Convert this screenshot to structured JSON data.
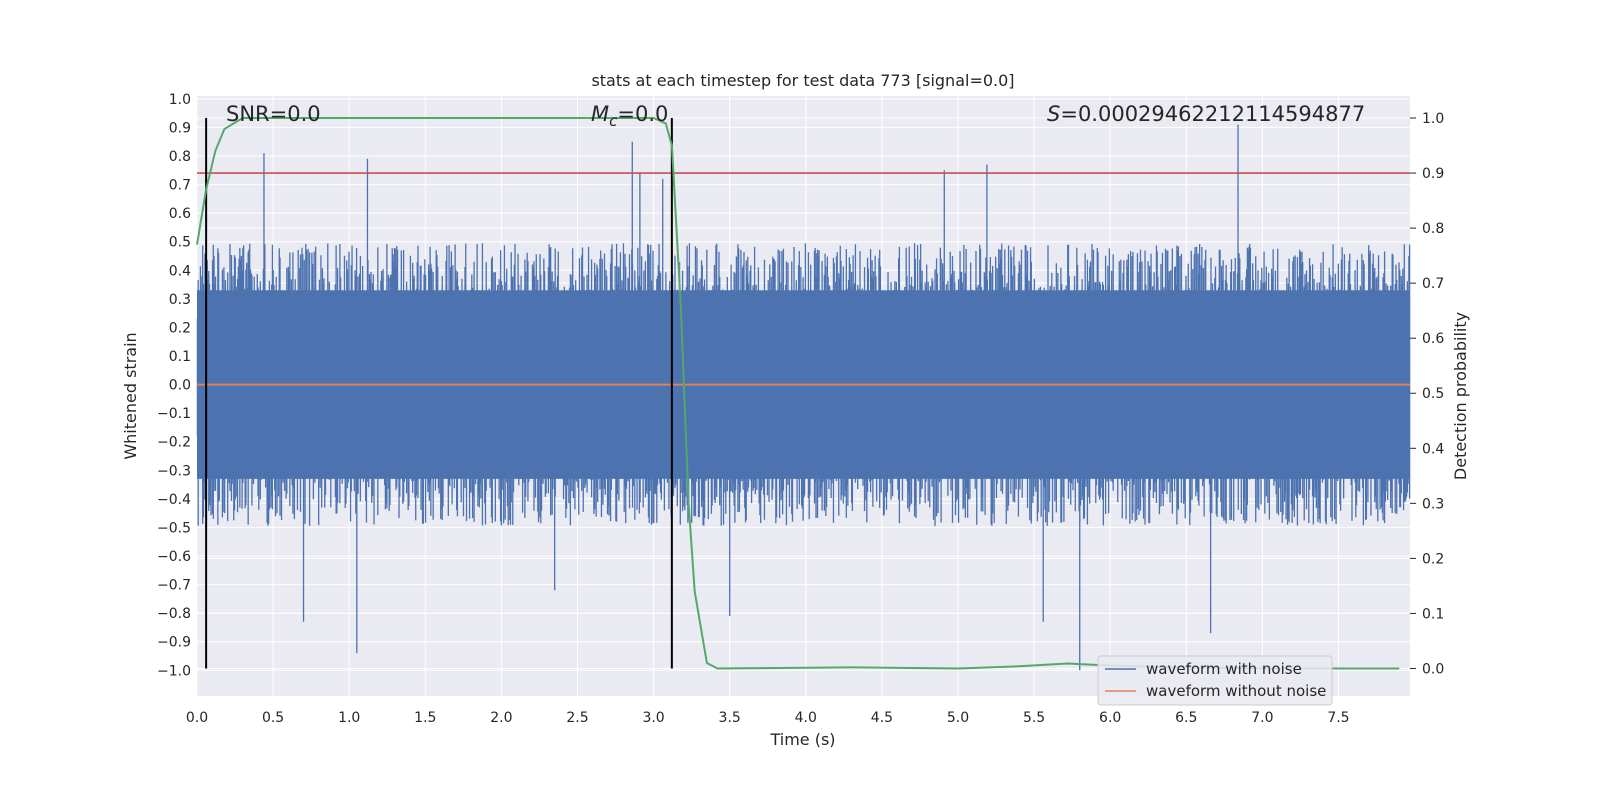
{
  "chart_data": {
    "type": "line",
    "title": "stats at each timestep for test data 773 [signal=0.0]",
    "xlabel": "Time (s)",
    "ylabel": "Whitened strain",
    "y2label": "Detection probability",
    "xlim": [
      0.0,
      7.97
    ],
    "ylim": [
      -1.09,
      1.01
    ],
    "y2lim": [
      -0.05,
      1.04
    ],
    "x_ticks": [
      "0.0",
      "0.5",
      "1.0",
      "1.5",
      "2.0",
      "2.5",
      "3.0",
      "3.5",
      "4.0",
      "4.5",
      "5.0",
      "5.5",
      "6.0",
      "6.5",
      "7.0",
      "7.5"
    ],
    "y_ticks": [
      "1.0",
      "0.9",
      "0.8",
      "0.7",
      "0.6",
      "0.5",
      "0.4",
      "0.3",
      "0.2",
      "0.1",
      "0.0",
      "-0.1",
      "-0.2",
      "-0.3",
      "-0.4",
      "-0.5",
      "-0.6",
      "-0.7",
      "-0.8",
      "-0.9",
      "-1.0"
    ],
    "y2_ticks": [
      "0.0",
      "0.1",
      "0.2",
      "0.3",
      "0.4",
      "0.5",
      "0.6",
      "0.7",
      "0.8",
      "0.9",
      "1.0"
    ],
    "grid": true,
    "legend_position": "bottom-right",
    "series": [
      {
        "name": "waveform with noise",
        "color": "#4c72b0",
        "axis": "left",
        "kind": "noise",
        "envelope_approx": 0.45,
        "spikes": [
          {
            "x": 0.44,
            "y": 0.81
          },
          {
            "x": 1.12,
            "y": 0.79
          },
          {
            "x": 2.86,
            "y": 0.85
          },
          {
            "x": 2.91,
            "y": 0.74
          },
          {
            "x": 3.06,
            "y": 0.72
          },
          {
            "x": 6.84,
            "y": 0.91
          },
          {
            "x": 5.19,
            "y": 0.77
          },
          {
            "x": 4.91,
            "y": 0.75
          },
          {
            "x": 0.7,
            "y": -0.83
          },
          {
            "x": 1.05,
            "y": -0.94
          },
          {
            "x": 2.35,
            "y": -0.72
          },
          {
            "x": 3.5,
            "y": -0.81
          },
          {
            "x": 5.8,
            "y": -1.0
          },
          {
            "x": 6.66,
            "y": -0.87
          },
          {
            "x": 5.56,
            "y": -0.83
          }
        ]
      },
      {
        "name": "waveform without noise",
        "color": "#dd8452",
        "axis": "left",
        "x": [
          0.0,
          7.97
        ],
        "y": [
          0.0,
          0.0
        ]
      },
      {
        "name": "",
        "color": "#55a868",
        "axis": "right",
        "x": [
          0.0,
          0.06,
          0.12,
          0.18,
          0.24,
          0.3,
          0.4,
          1.0,
          2.0,
          2.8,
          3.0,
          3.08,
          3.12,
          3.18,
          3.23,
          3.27,
          3.35,
          3.42,
          4.3,
          5.0,
          5.4,
          5.72,
          5.95,
          6.3,
          7.0,
          7.9
        ],
        "y": [
          0.77,
          0.87,
          0.94,
          0.98,
          0.99,
          1.0,
          1.0,
          1.0,
          1.0,
          1.0,
          1.0,
          0.99,
          0.95,
          0.65,
          0.3,
          0.14,
          0.01,
          0.0,
          0.002,
          0.0,
          0.004,
          0.009,
          0.006,
          0.003,
          0.0,
          0.0
        ]
      }
    ],
    "threshold": {
      "axis": "right",
      "y": 0.9,
      "color": "#c44e52"
    },
    "vlines": [
      {
        "x": 0.06
      },
      {
        "x": 3.12
      }
    ],
    "annotations": [
      {
        "text": "SNR=0.0"
      },
      {
        "text": "Mc=0.0",
        "main": "M",
        "sub": "c",
        "rest": "=0.0"
      },
      {
        "text": "S=0.0002946221211459487​7",
        "main": "S",
        "rest": "=0.00029462212114594877"
      }
    ]
  }
}
